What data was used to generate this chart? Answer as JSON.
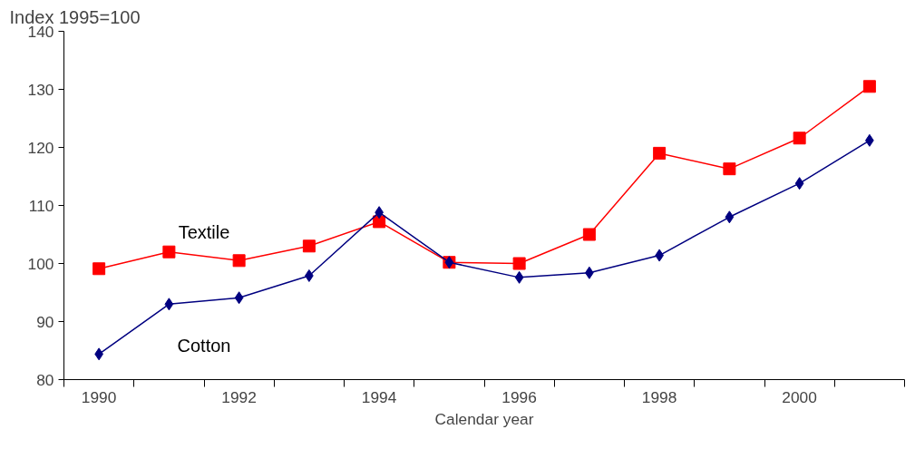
{
  "chart_data": {
    "type": "line",
    "ylabel": "Index 1995=100",
    "xlabel": "Calendar year",
    "categories": [
      "1990",
      null,
      "1992",
      null,
      "1994",
      null,
      "1996",
      null,
      "1998",
      null,
      "2000",
      null
    ],
    "series": [
      {
        "name": "Textile",
        "color": "#ff0000",
        "marker": "square",
        "values": [
          99.1,
          102.0,
          100.5,
          103.0,
          107.2,
          100.2,
          100.0,
          105.0,
          119.0,
          116.3,
          121.6,
          130.5
        ]
      },
      {
        "name": "Cotton",
        "color": "#000080",
        "marker": "diamond",
        "values": [
          84.4,
          93.0,
          94.1,
          97.9,
          108.8,
          100.2,
          97.6,
          98.4,
          101.4,
          108.0,
          113.8,
          121.2
        ]
      }
    ],
    "ylim": [
      80,
      140
    ],
    "yticks": [
      80,
      90,
      100,
      110,
      120,
      130,
      140
    ],
    "grid": false,
    "line_style": "solid"
  }
}
